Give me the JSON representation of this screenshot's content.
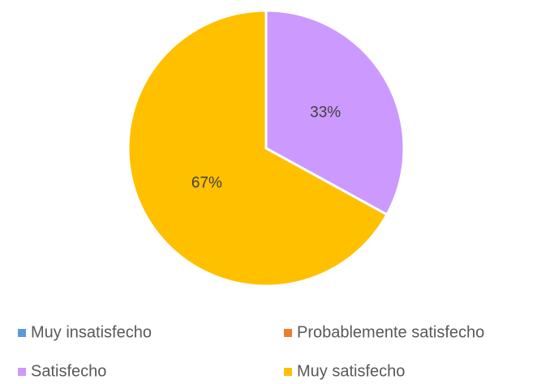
{
  "chart_data": {
    "type": "pie",
    "categories": [
      "Muy insatisfecho",
      "Probablemente satisfecho",
      "Satisfecho",
      "Muy satisfecho"
    ],
    "values": [
      0,
      0,
      33,
      67
    ],
    "value_labels": [
      null,
      null,
      "33%",
      "67%"
    ],
    "colors": [
      "#5b9bd5",
      "#ed7d31",
      "#cc99ff",
      "#ffc000"
    ],
    "legend": "bottom"
  }
}
